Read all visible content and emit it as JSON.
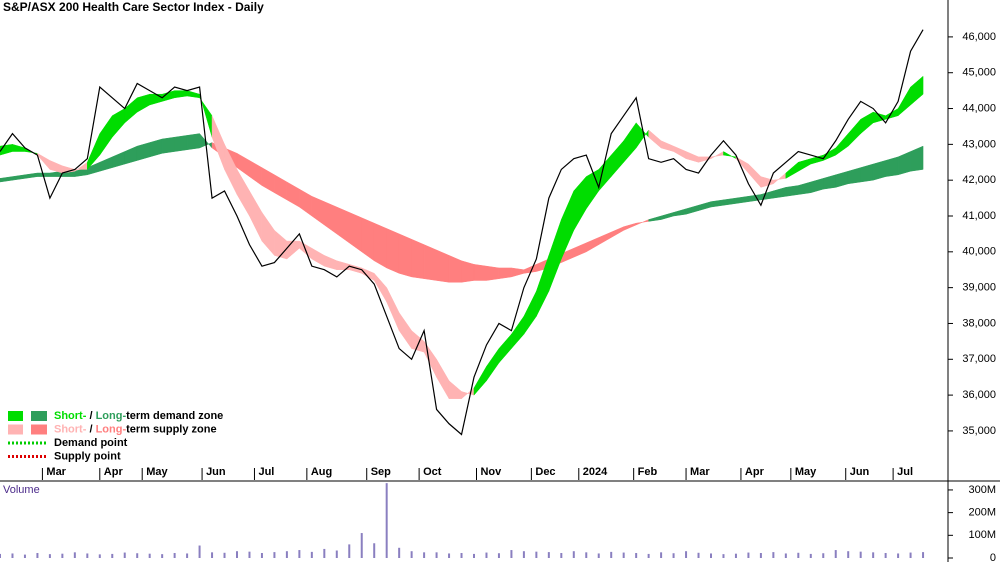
{
  "chart_data": [
    {
      "type": "line",
      "title": "S&P/ASX 200 Health Care Sector Index - Daily",
      "x": [
        0,
        5,
        10,
        15,
        20,
        25,
        30,
        35,
        40,
        45,
        50,
        55,
        60,
        65,
        70,
        75,
        80,
        85,
        90,
        95,
        100,
        105,
        110,
        115,
        120,
        125,
        130,
        135,
        140,
        145,
        150,
        155,
        160,
        165,
        170,
        175,
        180,
        185,
        190,
        195,
        200,
        205,
        210,
        215,
        220,
        225,
        230,
        235,
        240,
        245,
        250,
        255,
        260,
        265,
        270,
        275,
        280,
        285,
        290,
        295,
        300,
        305,
        310,
        315,
        320,
        325,
        330,
        335,
        340,
        345,
        350,
        355,
        360,
        365,
        370
      ],
      "xlim": [
        0,
        380
      ],
      "xticks": [
        {
          "value": 17,
          "label": "Mar"
        },
        {
          "value": 40,
          "label": "Apr"
        },
        {
          "value": 57,
          "label": "May"
        },
        {
          "value": 81,
          "label": "Jun"
        },
        {
          "value": 102,
          "label": "Jul"
        },
        {
          "value": 123,
          "label": "Aug"
        },
        {
          "value": 147,
          "label": "Sep"
        },
        {
          "value": 168,
          "label": "Oct"
        },
        {
          "value": 191,
          "label": "Nov"
        },
        {
          "value": 213,
          "label": "Dec"
        },
        {
          "value": 232,
          "label": "2024"
        },
        {
          "value": 254,
          "label": "Feb"
        },
        {
          "value": 275,
          "label": "Mar"
        },
        {
          "value": 297,
          "label": "Apr"
        },
        {
          "value": 317,
          "label": "May"
        },
        {
          "value": 339,
          "label": "Jun"
        },
        {
          "value": 358,
          "label": "Jul"
        }
      ],
      "ylim": [
        33630,
        47030
      ],
      "yticks": [
        {
          "value": 35000,
          "label": "35,000"
        },
        {
          "value": 36000,
          "label": "36,000"
        },
        {
          "value": 37000,
          "label": "37,000"
        },
        {
          "value": 38000,
          "label": "38,000"
        },
        {
          "value": 39000,
          "label": "39,000"
        },
        {
          "value": 40000,
          "label": "40,000"
        },
        {
          "value": 41000,
          "label": "41,000"
        },
        {
          "value": 42000,
          "label": "42,000"
        },
        {
          "value": 43000,
          "label": "43,000"
        },
        {
          "value": 44000,
          "label": "44,000"
        },
        {
          "value": 45000,
          "label": "45,000"
        },
        {
          "value": 46000,
          "label": "46,000"
        }
      ],
      "close": [
        42800,
        43300,
        42900,
        42700,
        41500,
        42200,
        42300,
        42600,
        44600,
        44300,
        44000,
        44700,
        44500,
        44300,
        44600,
        44500,
        44600,
        41500,
        41700,
        41000,
        40200,
        39600,
        39700,
        40100,
        40500,
        39600,
        39500,
        39300,
        39600,
        39500,
        39100,
        38200,
        37300,
        37000,
        37800,
        35600,
        35200,
        34900,
        36500,
        37400,
        38000,
        37800,
        39000,
        39800,
        41500,
        42300,
        42600,
        42700,
        41800,
        43300,
        43800,
        44300,
        42600,
        42500,
        42600,
        42300,
        42200,
        42700,
        43100,
        42700,
        41900,
        41300,
        42200,
        42500,
        42800,
        42700,
        42600,
        43100,
        43700,
        44200,
        44000,
        43600,
        44200,
        45600,
        46200
      ],
      "close_color": "#000000",
      "bands": [
        {
          "fast": [
            42950,
            43000,
            42900,
            42700,
            42300,
            42200,
            42250,
            42500,
            43300,
            43800,
            44000,
            44300,
            44400,
            44400,
            44500,
            44500,
            44400,
            43200,
            42300,
            41600,
            41000,
            40300,
            39900,
            39800,
            40100,
            39800,
            39600,
            39500,
            39500,
            39400,
            39200,
            38600,
            37800,
            37300,
            37200,
            36500,
            35900,
            35900,
            36200,
            36800,
            37300,
            37700,
            38200,
            38900,
            39900,
            40900,
            41700,
            42100,
            42300,
            42700,
            43100,
            43600,
            43200,
            42900,
            42800,
            42600,
            42500,
            42600,
            42800,
            42600,
            42200,
            41800,
            41900,
            42200,
            42500,
            42600,
            42700,
            42900,
            43300,
            43700,
            43900,
            43800,
            44000,
            44600,
            44900
          ],
          "slow": [
            42700,
            42800,
            42800,
            42750,
            42550,
            42400,
            42300,
            42300,
            42700,
            43200,
            43600,
            43900,
            44100,
            44200,
            44300,
            44350,
            44300,
            43800,
            43000,
            42300,
            41700,
            41100,
            40600,
            40300,
            40300,
            40100,
            39900,
            39750,
            39650,
            39550,
            39400,
            39000,
            38300,
            37800,
            37500,
            37000,
            36400,
            36100,
            36000,
            36400,
            36900,
            37300,
            37700,
            38200,
            38900,
            39800,
            40600,
            41200,
            41700,
            42100,
            42500,
            42900,
            43400,
            43100,
            42950,
            42800,
            42650,
            42650,
            42700,
            42650,
            42450,
            42100,
            42000,
            42050,
            42250,
            42450,
            42550,
            42700,
            42950,
            43300,
            43600,
            43700,
            43800,
            44100,
            44400
          ],
          "demand_color": "#00dd00",
          "supply_color": "#ffb3b3"
        },
        {
          "fast": [
            42050,
            42100,
            42150,
            42200,
            42200,
            42250,
            42250,
            42350,
            42500,
            42650,
            42800,
            42950,
            43050,
            43150,
            43200,
            43250,
            43300,
            42900,
            42650,
            42350,
            42100,
            41850,
            41650,
            41450,
            41250,
            41000,
            40750,
            40500,
            40250,
            40000,
            39750,
            39550,
            39400,
            39300,
            39250,
            39200,
            39150,
            39150,
            39200,
            39200,
            39250,
            39300,
            39400,
            39450,
            39550,
            39700,
            39850,
            40000,
            40200,
            40400,
            40600,
            40750,
            40900,
            41000,
            41100,
            41200,
            41300,
            41400,
            41450,
            41500,
            41550,
            41600,
            41700,
            41800,
            41850,
            41950,
            42050,
            42150,
            42250,
            42350,
            42450,
            42550,
            42650,
            42800,
            42950
          ],
          "slow": [
            41950,
            42000,
            42050,
            42100,
            42100,
            42100,
            42100,
            42150,
            42250,
            42350,
            42450,
            42550,
            42650,
            42750,
            42800,
            42850,
            42900,
            43050,
            42900,
            42750,
            42550,
            42350,
            42150,
            41950,
            41750,
            41550,
            41400,
            41250,
            41100,
            40950,
            40800,
            40650,
            40500,
            40350,
            40200,
            40050,
            39900,
            39750,
            39650,
            39600,
            39550,
            39550,
            39500,
            39650,
            39800,
            39950,
            40100,
            40250,
            40400,
            40550,
            40700,
            40800,
            40850,
            40900,
            41000,
            41050,
            41150,
            41250,
            41300,
            41350,
            41400,
            41450,
            41500,
            41550,
            41600,
            41650,
            41750,
            41800,
            41900,
            41950,
            42000,
            42100,
            42150,
            42250,
            42300
          ],
          "demand_color": "#2e9e5b",
          "supply_color": "#ff7f7f"
        }
      ],
      "legend": [
        {
          "parts": [
            "Short-",
            " / ",
            "Long-",
            "term demand zone"
          ]
        },
        {
          "parts": [
            "Short-",
            " / ",
            "Long-",
            "term supply zone"
          ]
        },
        {
          "label": "Demand point",
          "color": "#00cc00"
        },
        {
          "label": "Supply point",
          "color": "#dd0000"
        }
      ]
    },
    {
      "type": "bar",
      "title": "Volume",
      "values": [
        18,
        20,
        15,
        22,
        17,
        19,
        25,
        20,
        16,
        18,
        24,
        21,
        19,
        17,
        22,
        20,
        55,
        25,
        23,
        30,
        28,
        22,
        26,
        30,
        35,
        27,
        40,
        33,
        60,
        110,
        65,
        330,
        45,
        30,
        25,
        25,
        20,
        22,
        18,
        24,
        21,
        35,
        30,
        28,
        26,
        22,
        30,
        25,
        20,
        27,
        24,
        22,
        18,
        25,
        21,
        30,
        23,
        20,
        17,
        19,
        24,
        22,
        26,
        20,
        23,
        18,
        21,
        35,
        30,
        28,
        25,
        22,
        20,
        24,
        26
      ],
      "color": "#8a7fc0",
      "ylim": [
        0,
        335
      ],
      "yticks": [
        0,
        {
          "value": 100,
          "label": "100M"
        },
        {
          "value": 200,
          "label": "200M"
        },
        {
          "value": 300,
          "label": "300M"
        }
      ]
    }
  ]
}
